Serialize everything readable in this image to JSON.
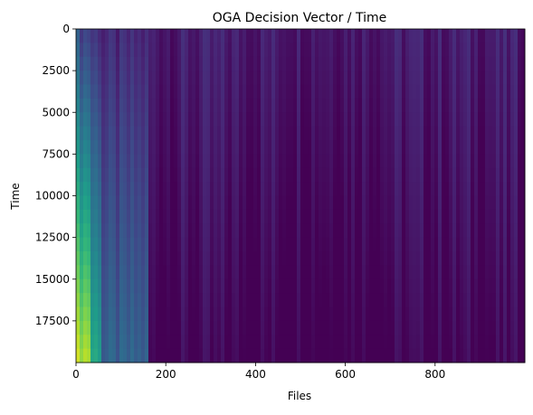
{
  "chart_data": {
    "type": "heatmap",
    "title": "OGA Decision Vector / Time",
    "xlabel": "Files",
    "ylabel": "Time",
    "xlim": [
      0,
      1000
    ],
    "ylim": [
      0,
      20000
    ],
    "y_axis_inverted": true,
    "colormap": "viridis",
    "xticks": [
      0,
      200,
      400,
      600,
      800
    ],
    "yticks": [
      0,
      2500,
      5000,
      7500,
      10000,
      12500,
      15000,
      17500
    ],
    "xtick_labels": [
      "0",
      "200",
      "400",
      "600",
      "800"
    ],
    "ytick_labels": [
      "0",
      "2500",
      "5000",
      "7500",
      "10000",
      "12500",
      "15000",
      "17500"
    ],
    "description_of_values": "Per-file decision weight over time: a small set of low-index files grow to high values (yellow) as time increases, while most files decay toward the minimum (dark purple).",
    "column_profile": [
      {
        "files_from": 0,
        "files_to": 12,
        "value_at_time_0": 0.25,
        "value_at_time_20000": 0.9
      },
      {
        "files_from": 12,
        "files_to": 30,
        "value_at_time_0": 0.2,
        "value_at_time_20000": 0.9
      },
      {
        "files_from": 30,
        "files_to": 60,
        "value_at_time_0": 0.15,
        "value_at_time_20000": 0.6
      },
      {
        "files_from": 60,
        "files_to": 160,
        "value_at_time_0": 0.1,
        "value_at_time_20000": 0.3
      },
      {
        "files_from": 160,
        "files_to": 1000,
        "value_at_time_0": 0.08,
        "value_at_time_20000": 0.0
      }
    ]
  }
}
